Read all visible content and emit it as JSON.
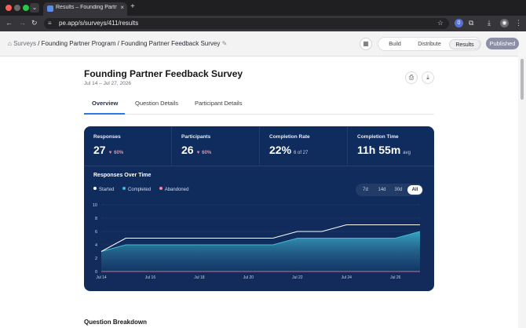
{
  "browser": {
    "tab_title": "Results – Founding Partner Fe",
    "url": "pe.app/s/surveys/411/results",
    "extension_badge": "0"
  },
  "breadcrumb": {
    "root": "Surveys",
    "program": "Founding Partner Program",
    "survey": "Founding Partner Feedback Survey"
  },
  "header": {
    "nav": [
      "Build",
      "Distribute",
      "Results"
    ],
    "active_nav": "Results",
    "status": "Published"
  },
  "survey": {
    "title": "Founding Partner Feedback Survey",
    "date_range": "Jul 14 – Jul 27, 2026"
  },
  "page_tabs": [
    "Overview",
    "Question Details",
    "Participant Details"
  ],
  "active_page_tab": "Overview",
  "stats": [
    {
      "label": "Responses",
      "value": "27",
      "change": "▼ 60%"
    },
    {
      "label": "Participants",
      "value": "26",
      "change": "▼ 60%"
    },
    {
      "label": "Completion Rate",
      "value": "22%",
      "sub": "6 of 27"
    },
    {
      "label": "Completion Time",
      "value": "11h 55m",
      "sub": "avg"
    }
  ],
  "over_time": {
    "title": "Responses Over Time",
    "ranges": [
      "7d",
      "14d",
      "30d",
      "All"
    ],
    "active_range": "All"
  },
  "colors": {
    "started": "#ffffff",
    "completed": "#3fb9d4",
    "abandoned": "#f08aa0",
    "card_bg": "#0f2c5e",
    "accent": "#2c78e8"
  },
  "chart_data": {
    "type": "area",
    "x": [
      "Jul 14",
      "Jul 15",
      "Jul 16",
      "Jul 17",
      "Jul 18",
      "Jul 19",
      "Jul 20",
      "Jul 21",
      "Jul 22",
      "Jul 23",
      "Jul 24",
      "Jul 25",
      "Jul 26",
      "Jul 27"
    ],
    "x_tick_labels": [
      "Jul 14",
      "Jul 16",
      "Jul 18",
      "Jul 20",
      "Jul 22",
      "Jul 24",
      "Jul 26"
    ],
    "ylim": [
      0,
      10
    ],
    "y_ticks": [
      0,
      2,
      4,
      6,
      8,
      10
    ],
    "grid": true,
    "legend": "top-left",
    "series": [
      {
        "name": "Started",
        "values": [
          3,
          5,
          5,
          5,
          5,
          5,
          5,
          5,
          6,
          6,
          7,
          7,
          7,
          7
        ]
      },
      {
        "name": "Completed",
        "values": [
          3,
          4,
          4,
          4,
          4,
          4,
          4,
          4,
          5,
          5,
          5,
          5,
          5,
          6
        ]
      },
      {
        "name": "Abandoned",
        "values": [
          0,
          0,
          0,
          0,
          0,
          0,
          0,
          0,
          0,
          0,
          0,
          0,
          0,
          0
        ]
      }
    ]
  },
  "sections": {
    "breakdown_title": "Question Breakdown"
  }
}
